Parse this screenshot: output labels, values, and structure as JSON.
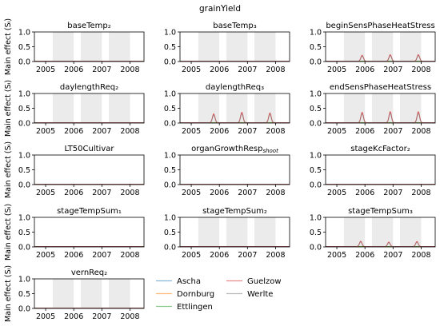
{
  "figure_title": "grainYield",
  "ylabel": "Main effect (Sᵢ)",
  "colors": {
    "Ascha": "#1f77b4",
    "Dornburg": "#ff7f0e",
    "Ettlingen": "#2ca02c",
    "Guelzow": "#d62728",
    "Werlte": "#7f7f7f",
    "band": "#ebebeb"
  },
  "legend": [
    "Ascha",
    "Dornburg",
    "Ettlingen",
    "Guelzow",
    "Werlte"
  ],
  "chart_data": [
    {
      "type": "line",
      "title": "baseTemp₂",
      "xlim": [
        2004.6,
        2008.5
      ],
      "ylim": [
        0,
        1.0
      ],
      "xticks": [
        "2005",
        "2006",
        "2007",
        "2008"
      ],
      "yticks": [
        "0.0",
        "0.5",
        "1.0"
      ],
      "shaded_seasons": [
        [
          2005.25,
          2006.0
        ],
        [
          2006.25,
          2007.0
        ],
        [
          2007.25,
          2008.0
        ]
      ],
      "peaks": []
    },
    {
      "type": "line",
      "title": "baseTemp₃",
      "xlim": [
        2004.6,
        2008.5
      ],
      "ylim": [
        0,
        1.0
      ],
      "xticks": [
        "2005",
        "2006",
        "2007",
        "2008"
      ],
      "yticks": [
        "0.0",
        "0.5",
        "1.0"
      ],
      "shaded_seasons": [
        [
          2005.25,
          2006.0
        ],
        [
          2006.25,
          2007.0
        ],
        [
          2007.25,
          2008.0
        ]
      ],
      "peaks": []
    },
    {
      "type": "line",
      "title": "beginSensPhaseHeatStress",
      "xlim": [
        2004.6,
        2008.5
      ],
      "ylim": [
        0,
        1.0
      ],
      "xticks": [
        "2005",
        "2006",
        "2007",
        "2008"
      ],
      "yticks": [
        "0.0",
        "0.5",
        "1.0"
      ],
      "shaded_seasons": [
        [
          2005.25,
          2006.0
        ],
        [
          2006.25,
          2007.0
        ],
        [
          2007.25,
          2008.0
        ]
      ],
      "peaks": [
        {
          "x": 2005.9,
          "y": 0.2
        },
        {
          "x": 2006.9,
          "y": 0.22
        },
        {
          "x": 2007.9,
          "y": 0.22
        }
      ]
    },
    {
      "type": "line",
      "title": "daylengthReq₂",
      "xlim": [
        2004.6,
        2008.5
      ],
      "ylim": [
        0,
        1.0
      ],
      "xticks": [
        "2005",
        "2006",
        "2007",
        "2008"
      ],
      "yticks": [
        "0.0",
        "0.5",
        "1.0"
      ],
      "shaded_seasons": [
        [
          2005.25,
          2006.0
        ],
        [
          2006.25,
          2007.0
        ],
        [
          2007.25,
          2008.0
        ]
      ],
      "peaks": []
    },
    {
      "type": "line",
      "title": "daylengthReq₃",
      "xlim": [
        2004.6,
        2008.5
      ],
      "ylim": [
        0,
        1.0
      ],
      "xticks": [
        "2005",
        "2006",
        "2007",
        "2008"
      ],
      "yticks": [
        "0.0",
        "0.5",
        "1.0"
      ],
      "shaded_seasons": [
        [
          2005.25,
          2006.0
        ],
        [
          2006.25,
          2007.0
        ],
        [
          2007.25,
          2008.0
        ]
      ],
      "peaks": [
        {
          "x": 2005.8,
          "y": 0.3
        },
        {
          "x": 2006.8,
          "y": 0.35
        },
        {
          "x": 2007.8,
          "y": 0.33
        }
      ]
    },
    {
      "type": "line",
      "title": "endSensPhaseHeatStress",
      "xlim": [
        2004.6,
        2008.5
      ],
      "ylim": [
        0,
        1.0
      ],
      "xticks": [
        "2005",
        "2006",
        "2007",
        "2008"
      ],
      "yticks": [
        "0.0",
        "0.5",
        "1.0"
      ],
      "shaded_seasons": [
        [
          2005.25,
          2006.0
        ],
        [
          2006.25,
          2007.0
        ],
        [
          2007.25,
          2008.0
        ]
      ],
      "peaks": [
        {
          "x": 2005.9,
          "y": 0.35
        },
        {
          "x": 2006.9,
          "y": 0.37
        },
        {
          "x": 2007.9,
          "y": 0.37
        }
      ]
    },
    {
      "type": "line",
      "title": "LT50Cultivar",
      "xlim": [
        2004.6,
        2008.5
      ],
      "ylim": [
        0,
        1.0
      ],
      "xticks": [
        "2005",
        "2006",
        "2007",
        "2008"
      ],
      "yticks": [
        "0.0",
        "0.5",
        "1.0"
      ],
      "shaded_seasons": [],
      "peaks": []
    },
    {
      "type": "line",
      "title": "organGrowthResp",
      "title_sub": "shoot",
      "xlim": [
        2004.6,
        2008.5
      ],
      "ylim": [
        0,
        1.0
      ],
      "xticks": [
        "2005",
        "2006",
        "2007",
        "2008"
      ],
      "yticks": [
        "0.0",
        "0.5",
        "1.0"
      ],
      "shaded_seasons": [],
      "peaks": []
    },
    {
      "type": "line",
      "title": "stageKcFactor₂",
      "xlim": [
        2004.6,
        2008.5
      ],
      "ylim": [
        0,
        1.0
      ],
      "xticks": [
        "2005",
        "2006",
        "2007",
        "2008"
      ],
      "yticks": [
        "0.0",
        "0.5",
        "1.0"
      ],
      "shaded_seasons": [],
      "peaks": []
    },
    {
      "type": "line",
      "title": "stageTempSum₁",
      "xlim": [
        2004.6,
        2008.5
      ],
      "ylim": [
        0,
        1.0
      ],
      "xticks": [
        "2005",
        "2006",
        "2007",
        "2008"
      ],
      "yticks": [
        "0.0",
        "0.5",
        "1.0"
      ],
      "shaded_seasons": [],
      "peaks": []
    },
    {
      "type": "line",
      "title": "stageTempSum₂",
      "xlim": [
        2004.6,
        2008.5
      ],
      "ylim": [
        0,
        1.0
      ],
      "xticks": [
        "2005",
        "2006",
        "2007",
        "2008"
      ],
      "yticks": [
        "0.0",
        "0.5",
        "1.0"
      ],
      "shaded_seasons": [
        [
          2005.25,
          2006.0
        ],
        [
          2006.25,
          2007.0
        ],
        [
          2007.25,
          2008.0
        ]
      ],
      "peaks": []
    },
    {
      "type": "line",
      "title": "stageTempSum₃",
      "xlim": [
        2004.6,
        2008.5
      ],
      "ylim": [
        0,
        1.0
      ],
      "xticks": [
        "2005",
        "2006",
        "2007",
        "2008"
      ],
      "yticks": [
        "0.0",
        "0.5",
        "1.0"
      ],
      "shaded_seasons": [
        [
          2005.25,
          2006.0
        ],
        [
          2006.25,
          2007.0
        ],
        [
          2007.25,
          2008.0
        ]
      ],
      "peaks": [
        {
          "x": 2005.85,
          "y": 0.18
        },
        {
          "x": 2006.85,
          "y": 0.15
        },
        {
          "x": 2007.85,
          "y": 0.17
        }
      ]
    },
    {
      "type": "line",
      "title": "vernReq₂",
      "xlim": [
        2004.6,
        2008.5
      ],
      "ylim": [
        0,
        1.0
      ],
      "xticks": [
        "2005",
        "2006",
        "2007",
        "2008"
      ],
      "yticks": [
        "0.0",
        "0.5",
        "1.0"
      ],
      "shaded_seasons": [
        [
          2005.25,
          2006.0
        ],
        [
          2006.25,
          2007.0
        ],
        [
          2007.25,
          2008.0
        ]
      ],
      "peaks": []
    }
  ]
}
